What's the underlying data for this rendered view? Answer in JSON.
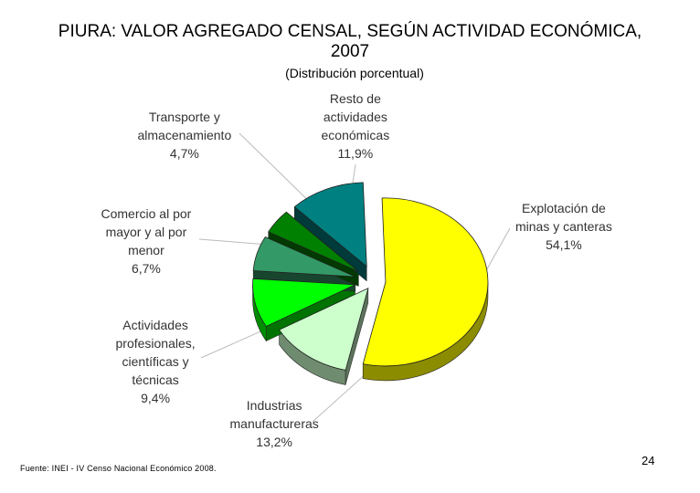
{
  "header": {
    "title_line1": "PIURA: VALOR AGREGADO CENSAL, SEGÚN ACTIVIDAD ECONÓMICA,",
    "title_line2": "2007",
    "subtitle": "(Distribución porcentual)"
  },
  "chart_data": {
    "type": "pie",
    "title": "PIURA: VALOR AGREGADO CENSAL, SEGÚN ACTIVIDAD ECONÓMICA, 2007",
    "subtitle": "(Distribución porcentual)",
    "unit": "%",
    "style": "3d-exploded",
    "slices": [
      {
        "label": "Explotación de\nminas y canteras",
        "value_label": "54,1%",
        "value": 54.1,
        "color": "#ffff00"
      },
      {
        "label": "Industrias\nmanufactureras",
        "value_label": "13,2%",
        "value": 13.2,
        "color": "#ccffcc"
      },
      {
        "label": "Actividades\nprofesionales,\ncientíficas y\ntécnicas",
        "value_label": "9,4%",
        "value": 9.4,
        "color": "#00ff00"
      },
      {
        "label": "Comercio al por\nmayor y al por\nmenor",
        "value_label": "6,7%",
        "value": 6.7,
        "color": "#339966"
      },
      {
        "label": "Transporte y\nalmacenamiento",
        "value_label": "4,7%",
        "value": 4.7,
        "color": "#008000"
      },
      {
        "label": "Resto de\nactividades\neconómicas",
        "value_label": "11,9%",
        "value": 11.9,
        "color": "#008080"
      }
    ]
  },
  "footer": {
    "source": "Fuente: INEI - IV Censo Nacional Económico 2008.",
    "page_number": "24"
  }
}
